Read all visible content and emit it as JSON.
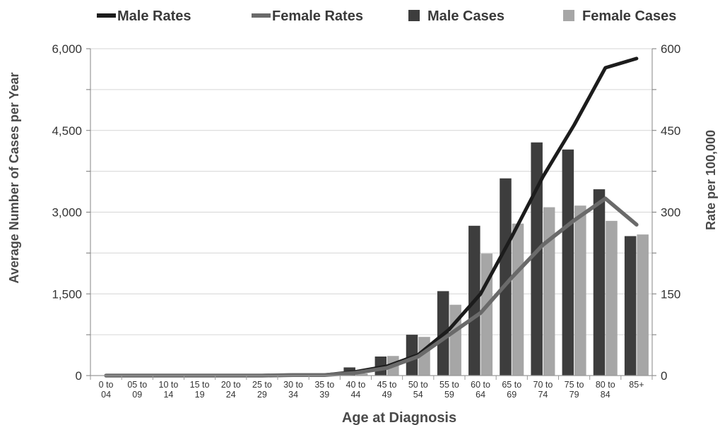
{
  "chart_data": {
    "type": "bar",
    "xlabel": "Age at Diagnosis",
    "ylabel": "Average Number of Cases per Year",
    "y2label": "Rate per 100,000",
    "categories": [
      [
        "0 to",
        "04"
      ],
      [
        "05 to",
        "09"
      ],
      [
        "10 to",
        "14"
      ],
      [
        "15 to",
        "19"
      ],
      [
        "20 to",
        "24"
      ],
      [
        "25 to",
        "29"
      ],
      [
        "30 to",
        "34"
      ],
      [
        "35 to",
        "39"
      ],
      [
        "40 to",
        "44"
      ],
      [
        "45 to",
        "49"
      ],
      [
        "50 to",
        "54"
      ],
      [
        "55 to",
        "59"
      ],
      [
        "60 to",
        "64"
      ],
      [
        "65 to",
        "69"
      ],
      [
        "70 to",
        "74"
      ],
      [
        "75 to",
        "79"
      ],
      [
        "80 to",
        "84"
      ],
      [
        "85+",
        ""
      ]
    ],
    "ylim": [
      0,
      6000
    ],
    "y2lim": [
      0,
      600
    ],
    "yticks": [
      "0",
      "1,500",
      "3,000",
      "4,500",
      "6,000"
    ],
    "ytick_values": [
      0,
      1500,
      3000,
      4500,
      6000
    ],
    "y2ticks": [
      "0",
      "150",
      "300",
      "450",
      "600"
    ],
    "y2tick_values": [
      0,
      150,
      300,
      450,
      600
    ],
    "bar_series": [
      {
        "name": "Male Cases",
        "color": "#3d3d3d",
        "values": [
          0,
          0,
          0,
          0,
          0,
          0,
          0,
          0,
          150,
          350,
          750,
          1550,
          2750,
          3620,
          4280,
          4150,
          3420,
          2560
        ]
      },
      {
        "name": "Female Cases",
        "color": "#a6a6a6",
        "values": [
          0,
          0,
          0,
          0,
          0,
          0,
          0,
          0,
          40,
          360,
          710,
          1300,
          2240,
          2790,
          3090,
          3120,
          2840,
          2590
        ]
      }
    ],
    "line_series": [
      {
        "name": "Male Rates",
        "color": "#1c1c1c",
        "values": [
          0,
          0,
          0,
          0,
          0,
          0,
          1,
          1,
          7,
          17,
          38,
          85,
          150,
          255,
          365,
          460,
          565,
          582
        ]
      },
      {
        "name": "Female Rates",
        "color": "#6a6a6a",
        "values": [
          0,
          0,
          0,
          0,
          0,
          0,
          1,
          1,
          5,
          14,
          35,
          75,
          115,
          180,
          240,
          285,
          325,
          277
        ]
      }
    ],
    "legend": [
      "Male Rates",
      "Female Rates",
      "Male Cases",
      "Female Cases"
    ],
    "legend_position": "top",
    "grid": true
  }
}
